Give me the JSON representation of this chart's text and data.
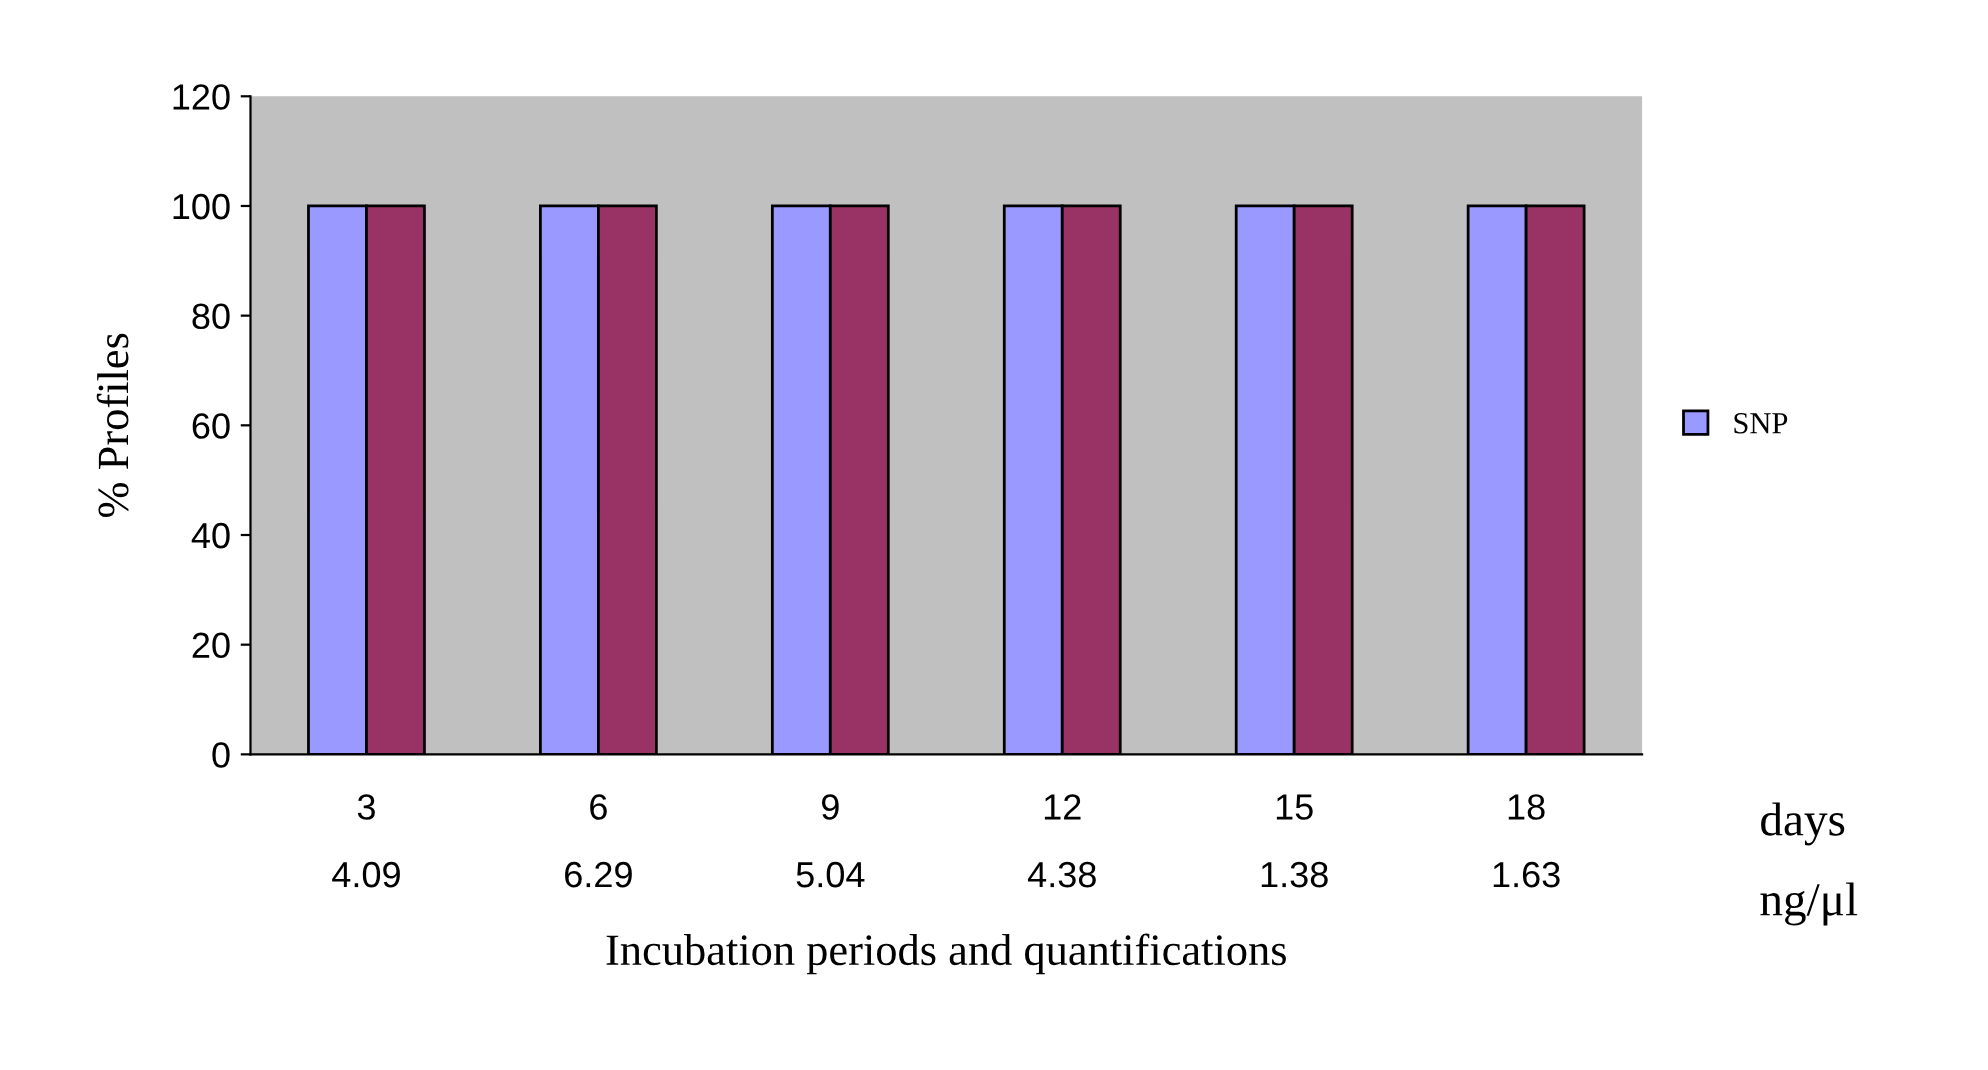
{
  "chart_data": {
    "type": "bar",
    "xlabel": "Incubation periods and quantifications",
    "ylabel": "% Profiles",
    "categories": [
      "3\n4.09",
      "6\n6.29",
      "9\n5.04",
      "12\n4.38",
      "15\n1.38",
      "18\n1.63"
    ],
    "series": [
      {
        "name": "SNP",
        "color": "#9999ff",
        "values": [
          100,
          100,
          100,
          100,
          100,
          100
        ]
      },
      {
        "color": "#993366",
        "values": [
          100,
          100,
          100,
          100,
          100,
          100
        ]
      }
    ],
    "ylim": [
      0,
      120
    ],
    "yticks": [
      0,
      20,
      40,
      60,
      80,
      100,
      120
    ],
    "grid": false,
    "legend": "right",
    "annotations": [
      "days",
      "ng/μl"
    ]
  }
}
